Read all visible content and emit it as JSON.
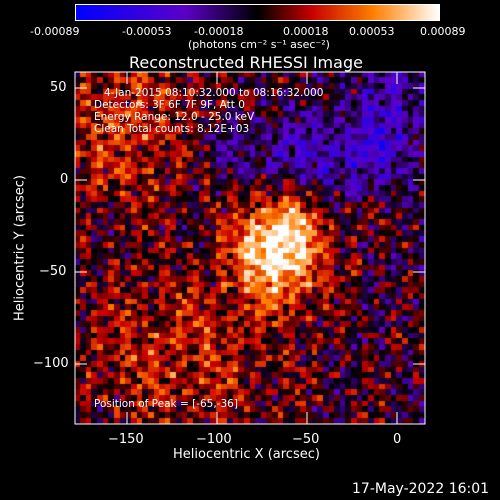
{
  "colorbar": {
    "ticks": [
      "-0.00089",
      "-0.00053",
      "-0.00018",
      "0.00018",
      "0.00053",
      "0.00089"
    ],
    "units": "(photons cm⁻² s⁻¹ asec⁻²)",
    "range": [
      -0.00089,
      0.00089
    ],
    "colors": [
      "#0000ff",
      "#5a00c8",
      "#000000",
      "#c80000",
      "#ff8000",
      "#ffffff"
    ]
  },
  "title": "Reconstructed RHESSI Image",
  "info": {
    "time_range": "4-Jan-2015 08:10:32.000 to 08:16:32.000",
    "detectors": "Detectors: 3F 6F 7F 9F, Att 0",
    "energy": "Energy Range: 12.0 - 25.0 keV",
    "clean": "Clean     Total counts: 8.12E+03"
  },
  "peak_label": "Position of Peak = [-65,-36]",
  "x_axis": {
    "title": "Heliocentric X (arcsec)",
    "ticks": [
      "−150",
      "−100",
      "−50",
      "0"
    ],
    "range": [
      -178,
      16
    ]
  },
  "y_axis": {
    "title": "Heliocentric Y (arcsec)",
    "ticks": [
      "50",
      "0",
      "−50",
      "−100"
    ],
    "range": [
      -132,
      60
    ]
  },
  "source_peak": {
    "x": -65,
    "y": -36
  },
  "footer": "17-May-2022 16:01"
}
